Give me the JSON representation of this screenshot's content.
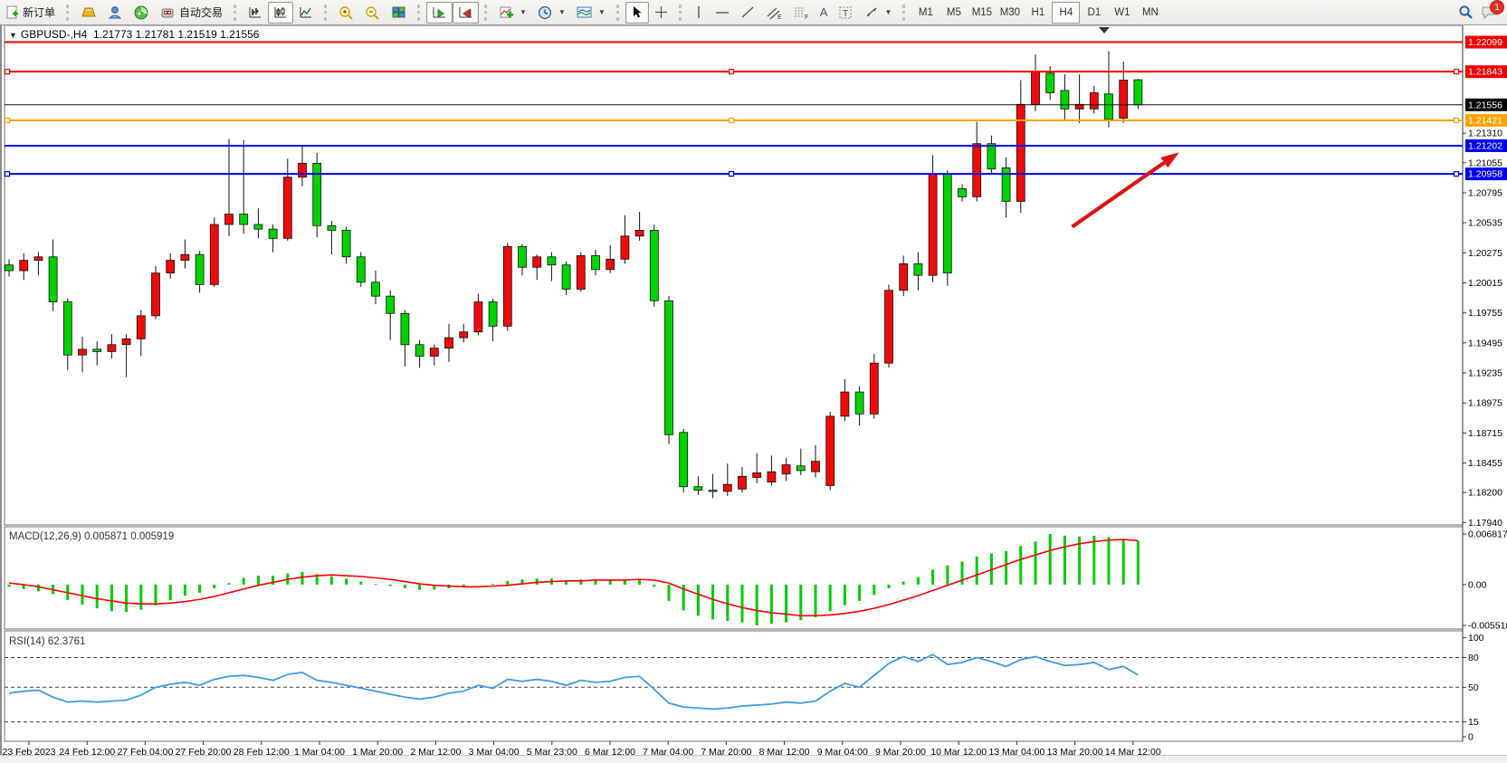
{
  "toolbar": {
    "new_order": "新订单",
    "autotrading": "自动交易",
    "timeframes": [
      "M1",
      "M5",
      "M15",
      "M30",
      "H1",
      "H4",
      "D1",
      "W1",
      "MN"
    ],
    "active_timeframe": "H4",
    "notification_count": "1",
    "glyphs": {
      "text_icon": "A",
      "label_icon": "T",
      "channel_icon": "E",
      "fibo_icon": "F"
    }
  },
  "chart": {
    "title": "GBPUSD-,H4",
    "ohlc": "1.21773 1.21781 1.21519 1.21556"
  },
  "statusbar": {
    "text": ""
  },
  "chart_data": [
    {
      "type": "candlestick",
      "symbol": "GBPUSD-",
      "timeframe": "H4",
      "ohlc_current": {
        "open": 1.21773,
        "high": 1.21781,
        "low": 1.21519,
        "close": 1.21556
      },
      "up_color": "#ee0b0b",
      "down_color": "#00d300",
      "y_range": {
        "top": 1.22244,
        "bottom": 1.17919
      },
      "y_ticks": [
        1.2131,
        1.21055,
        1.20795,
        1.20535,
        1.20275,
        1.20015,
        1.19755,
        1.19495,
        1.19235,
        1.18975,
        1.18715,
        1.18455,
        1.182,
        1.1794
      ],
      "price_badges": [
        {
          "price": 1.22099,
          "label": "1.22099",
          "color": "#f00000"
        },
        {
          "price": 1.21843,
          "label": "1.21843",
          "color": "#f00000"
        },
        {
          "price": 1.21556,
          "label": "1.21556",
          "color": "#000000"
        },
        {
          "price": 1.21421,
          "label": "1.21421",
          "color": "#ffa200"
        },
        {
          "price": 1.21202,
          "label": "1.21202",
          "color": "#0000f0"
        },
        {
          "price": 1.20958,
          "label": "1.20958",
          "color": "#0000f0"
        }
      ],
      "hlines": [
        {
          "price": 1.22099,
          "color": "#f00000",
          "width": 2,
          "selected": false
        },
        {
          "price": 1.21843,
          "color": "#f00000",
          "width": 2,
          "selected": true
        },
        {
          "price": 1.21556,
          "color": "#111111",
          "width": 1,
          "selected": false
        },
        {
          "price": 1.21421,
          "color": "#ffa200",
          "width": 2,
          "selected": true
        },
        {
          "price": 1.21202,
          "color": "#0000f0",
          "width": 2,
          "selected": false
        },
        {
          "price": 1.20958,
          "color": "#0000f0",
          "width": 2,
          "selected": true
        }
      ],
      "arrow": {
        "from_bar": 72.5,
        "from_price": 1.205,
        "to_bar": 79.8,
        "to_price": 1.21145,
        "color": "#dd1414"
      },
      "x_labels": [
        "23 Feb 2023",
        "24 Feb 12:00",
        "27 Feb 04:00",
        "27 Feb 20:00",
        "28 Feb 12:00",
        "1 Mar 04:00",
        "1 Mar 20:00",
        "2 Mar 12:00",
        "3 Mar 04:00",
        "5 Mar 23:00",
        "6 Mar 12:00",
        "7 Mar 04:00",
        "7 Mar 20:00",
        "8 Mar 12:00",
        "9 Mar 04:00",
        "9 Mar 20:00",
        "10 Mar 12:00",
        "13 Mar 04:00",
        "13 Mar 20:00",
        "14 Mar 12:00"
      ],
      "candles": [
        [
          1.2017,
          1.2022,
          1.2007,
          1.2012
        ],
        [
          1.2012,
          1.2027,
          1.2004,
          1.2021
        ],
        [
          1.2021,
          1.2028,
          1.2008,
          1.2024
        ],
        [
          1.2024,
          1.2039,
          1.1977,
          1.1985
        ],
        [
          1.1985,
          1.1988,
          1.1926,
          1.1939
        ],
        [
          1.1939,
          1.1955,
          1.1924,
          1.1944
        ],
        [
          1.1944,
          1.1951,
          1.193,
          1.1942
        ],
        [
          1.1942,
          1.1957,
          1.1936,
          1.1948
        ],
        [
          1.1948,
          1.1957,
          1.192,
          1.1953
        ],
        [
          1.1953,
          1.1978,
          1.1938,
          1.1973
        ],
        [
          1.1973,
          1.2016,
          1.197,
          1.201
        ],
        [
          1.201,
          1.2027,
          1.2005,
          1.2021
        ],
        [
          1.2021,
          1.2039,
          1.2014,
          1.2026
        ],
        [
          1.2026,
          1.2029,
          1.1993,
          1.2
        ],
        [
          1.2,
          1.2058,
          1.1998,
          1.2052
        ],
        [
          1.2052,
          1.2126,
          1.2042,
          1.2061
        ],
        [
          1.2061,
          1.2125,
          1.2044,
          1.2052
        ],
        [
          1.2052,
          1.2066,
          1.204,
          1.2048
        ],
        [
          1.2048,
          1.2052,
          1.2028,
          1.204
        ],
        [
          1.204,
          1.2109,
          1.2038,
          1.2093
        ],
        [
          1.2093,
          1.2121,
          1.2085,
          1.2105
        ],
        [
          1.2105,
          1.2114,
          1.2041,
          1.2051
        ],
        [
          1.2051,
          1.2055,
          1.2026,
          1.2047
        ],
        [
          1.2047,
          1.205,
          1.2018,
          1.2024
        ],
        [
          1.2024,
          1.2028,
          1.1998,
          1.2002
        ],
        [
          1.2002,
          1.2012,
          1.1983,
          1.199
        ],
        [
          1.199,
          1.1995,
          1.1952,
          1.1975
        ],
        [
          1.1975,
          1.1978,
          1.1929,
          1.1948
        ],
        [
          1.1948,
          1.1952,
          1.1928,
          1.1938
        ],
        [
          1.1938,
          1.1948,
          1.193,
          1.1945
        ],
        [
          1.1945,
          1.1966,
          1.1933,
          1.1954
        ],
        [
          1.1954,
          1.1966,
          1.195,
          1.1959
        ],
        [
          1.1959,
          1.1992,
          1.1956,
          1.1985
        ],
        [
          1.1985,
          1.1988,
          1.1951,
          1.1964
        ],
        [
          1.1964,
          1.2036,
          1.196,
          1.2033
        ],
        [
          1.2033,
          1.2035,
          1.2008,
          1.2015
        ],
        [
          1.2015,
          1.2026,
          1.2004,
          1.2024
        ],
        [
          1.2024,
          1.2028,
          1.2003,
          1.2017
        ],
        [
          1.2017,
          1.202,
          1.1991,
          1.1996
        ],
        [
          1.1996,
          1.2028,
          1.1994,
          1.2025
        ],
        [
          1.2025,
          1.203,
          1.2008,
          1.2013
        ],
        [
          1.2013,
          1.2034,
          1.201,
          1.2022
        ],
        [
          1.2022,
          1.206,
          1.2018,
          1.2042
        ],
        [
          1.2042,
          1.2063,
          1.2038,
          1.2047
        ],
        [
          1.2047,
          1.2052,
          1.1981,
          1.1986
        ],
        [
          1.1986,
          1.199,
          1.1862,
          1.187
        ],
        [
          1.1872,
          1.1875,
          1.182,
          1.1825
        ],
        [
          1.1825,
          1.1834,
          1.1818,
          1.1822
        ],
        [
          1.1822,
          1.1836,
          1.1815,
          1.1821
        ],
        [
          1.1821,
          1.1845,
          1.1817,
          1.1827
        ],
        [
          1.1823,
          1.1842,
          1.182,
          1.1834
        ],
        [
          1.1833,
          1.1854,
          1.1828,
          1.1837
        ],
        [
          1.1829,
          1.1852,
          1.1826,
          1.1838
        ],
        [
          1.1836,
          1.185,
          1.183,
          1.1844
        ],
        [
          1.1843,
          1.1858,
          1.1835,
          1.1839
        ],
        [
          1.1838,
          1.1861,
          1.1833,
          1.1847
        ],
        [
          1.1826,
          1.189,
          1.1822,
          1.1886
        ],
        [
          1.1886,
          1.1918,
          1.1882,
          1.1907
        ],
        [
          1.1907,
          1.1912,
          1.1878,
          1.1888
        ],
        [
          1.1888,
          1.194,
          1.1884,
          1.1932
        ],
        [
          1.1932,
          1.2,
          1.1928,
          1.1995
        ],
        [
          1.1995,
          1.2025,
          1.199,
          1.2018
        ],
        [
          1.2018,
          1.2028,
          1.1995,
          1.2008
        ],
        [
          1.2008,
          1.2112,
          1.2002,
          1.2096
        ],
        [
          1.2096,
          1.2099,
          1.1999,
          1.201
        ],
        [
          1.2083,
          1.2087,
          1.2072,
          1.2076
        ],
        [
          1.2076,
          1.2141,
          1.2072,
          1.2122
        ],
        [
          1.2122,
          1.2129,
          1.2095,
          1.21
        ],
        [
          1.2101,
          1.211,
          1.2058,
          1.2072
        ],
        [
          1.2072,
          1.2177,
          1.2062,
          1.2156
        ],
        [
          1.2156,
          1.2199,
          1.215,
          1.2184
        ],
        [
          1.2183,
          1.2189,
          1.216,
          1.2166
        ],
        [
          1.2168,
          1.2182,
          1.2143,
          1.2152
        ],
        [
          1.2152,
          1.2182,
          1.214,
          1.2156
        ],
        [
          1.2152,
          1.2172,
          1.2148,
          1.2166
        ],
        [
          1.2165,
          1.2202,
          1.2136,
          1.2143
        ],
        [
          1.2144,
          1.2193,
          1.214,
          1.2177
        ],
        [
          1.21773,
          1.21781,
          1.21519,
          1.21556
        ]
      ]
    },
    {
      "type": "macd",
      "label_text": "MACD(12,26,9) 0.005871 0.005919",
      "hist_color": "#00cc00",
      "signal_color": "#ff0000",
      "y_range": {
        "top": 0.0078,
        "bottom": -0.006
      },
      "y_ticks": [
        {
          "v": 0.006817,
          "label": "0.006817"
        },
        {
          "v": 0.0,
          "label": "0.00"
        },
        {
          "v": -0.005518,
          "label": "-0.005518"
        }
      ],
      "hist": [
        -0.0003,
        -0.0006,
        -0.0009,
        -0.0013,
        -0.0021,
        -0.0027,
        -0.0032,
        -0.0036,
        -0.0037,
        -0.0034,
        -0.0028,
        -0.0021,
        -0.0015,
        -0.0011,
        -0.0005,
        0.0002,
        0.0009,
        0.0012,
        0.0012,
        0.0015,
        0.0017,
        0.0014,
        0.0011,
        0.0008,
        0.0004,
        0.0001,
        -0.0002,
        -0.0005,
        -0.0007,
        -0.0007,
        -0.0005,
        -0.0003,
        0.0,
        0.0001,
        0.0005,
        0.0007,
        0.0008,
        0.0008,
        0.0006,
        0.0007,
        0.0007,
        0.0006,
        0.0007,
        0.0007,
        -0.0003,
        -0.0022,
        -0.0035,
        -0.0042,
        -0.0047,
        -0.0049,
        -0.0051,
        -0.005518,
        -0.0053,
        -0.0051,
        -0.0048,
        -0.0044,
        -0.0036,
        -0.0028,
        -0.0022,
        -0.0014,
        -0.0005,
        0.0004,
        0.001,
        0.002,
        0.0026,
        0.0031,
        0.0038,
        0.0042,
        0.0045,
        0.0052,
        0.0058,
        0.006817,
        0.0066,
        0.0065,
        0.0066,
        0.0064,
        0.0061,
        0.005871
      ],
      "signal": [
        0.0002,
        0.0,
        -0.0003,
        -0.0007,
        -0.0011,
        -0.0015,
        -0.0019,
        -0.0022,
        -0.0025,
        -0.0026,
        -0.0026,
        -0.0025,
        -0.0023,
        -0.002,
        -0.0016,
        -0.0011,
        -0.0006,
        -0.0001,
        0.0003,
        0.0007,
        0.001,
        0.0012,
        0.0013,
        0.0012,
        0.0011,
        0.0009,
        0.0007,
        0.0004,
        0.0001,
        -0.0001,
        -0.0002,
        -0.0003,
        -0.0003,
        -0.0002,
        -0.0001,
        0.0001,
        0.0003,
        0.0004,
        0.0005,
        0.0005,
        0.0006,
        0.0006,
        0.0006,
        0.0007,
        0.0006,
        0.0002,
        -0.0006,
        -0.0013,
        -0.002,
        -0.0026,
        -0.0031,
        -0.0035,
        -0.0038,
        -0.004,
        -0.0042,
        -0.0042,
        -0.0041,
        -0.0039,
        -0.0036,
        -0.0032,
        -0.0027,
        -0.0021,
        -0.0015,
        -0.0008,
        -0.0001,
        0.0006,
        0.0013,
        0.002,
        0.0027,
        0.0034,
        0.004,
        0.0046,
        0.0051,
        0.0055,
        0.0058,
        0.006,
        0.0061,
        0.005919
      ]
    },
    {
      "type": "rsi",
      "label_text": "RSI(14) 62.3761",
      "line_color": "#3e9ce6",
      "y_range": {
        "top": 107,
        "bottom": -4.6
      },
      "levels_dashed": [
        80,
        50,
        15
      ],
      "y_tick_labels": [
        {
          "v": 100,
          "label": "100"
        },
        {
          "v": 80,
          "label": "80"
        },
        {
          "v": 50,
          "label": "50"
        },
        {
          "v": 15,
          "label": "15"
        },
        {
          "v": 0,
          "label": "0"
        }
      ],
      "series": [
        44,
        46,
        47,
        40,
        35,
        36,
        35,
        36,
        37,
        42,
        50,
        53,
        55,
        52,
        58,
        61,
        62,
        60,
        57,
        63,
        65,
        57,
        55,
        52,
        49,
        46,
        43,
        40,
        38,
        40,
        44,
        46,
        52,
        49,
        58,
        56,
        58,
        56,
        52,
        57,
        55,
        56,
        60,
        61,
        48,
        34,
        30,
        29,
        28,
        29,
        31,
        32,
        33,
        35,
        34,
        36,
        46,
        54,
        50,
        62,
        74,
        81,
        76,
        83,
        73,
        75,
        80,
        76,
        71,
        78,
        81,
        76,
        72,
        73,
        75,
        68,
        71,
        62.3761
      ]
    }
  ]
}
